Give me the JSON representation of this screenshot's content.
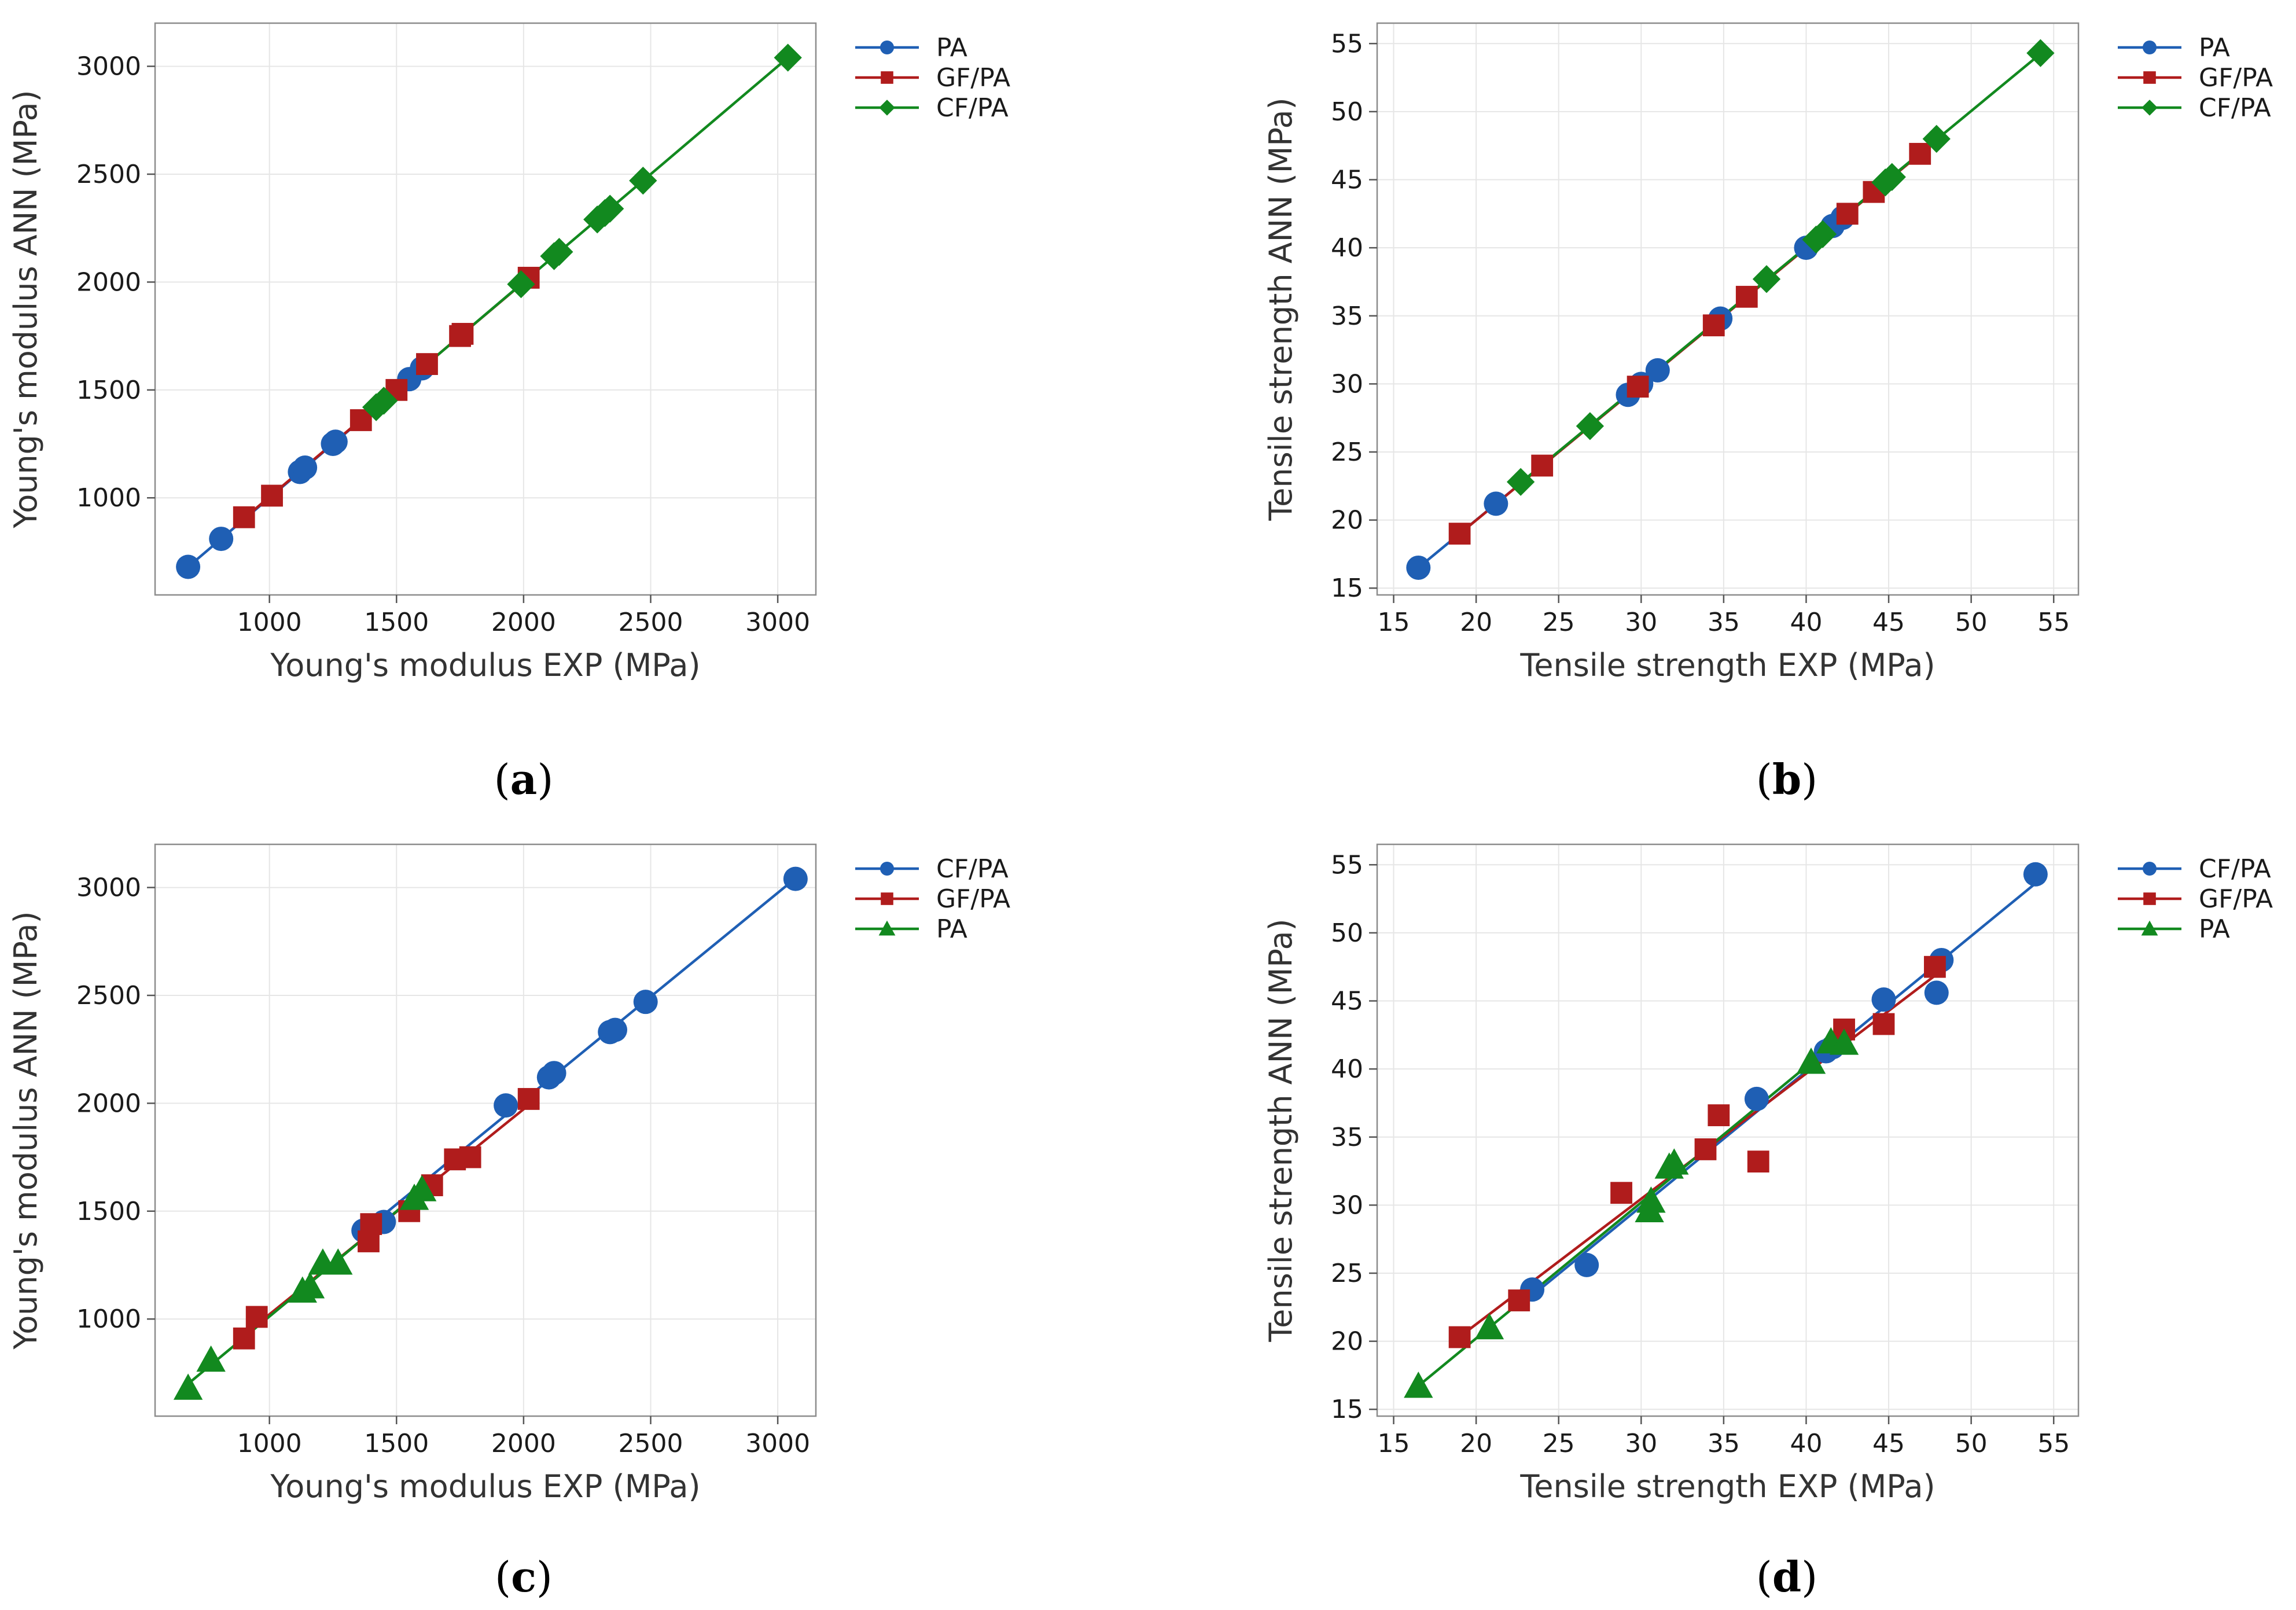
{
  "chart_data": [
    {
      "type": "scatter",
      "panel_label": "a",
      "xlabel": "Young's modulus EXP (MPa)",
      "ylabel": "Young's modulus ANN (MPa)",
      "xlim": [
        550,
        3150
      ],
      "ylim": [
        550,
        3200
      ],
      "xticks": [
        1000,
        1500,
        2000,
        2500,
        3000
      ],
      "yticks": [
        1000,
        1500,
        2000,
        2500,
        3000
      ],
      "legend_position": "outside-top-right",
      "series": [
        {
          "name": "PA",
          "color": "#1f5fb4",
          "marker": "circle",
          "x": [
            680,
            810,
            1120,
            1140,
            1250,
            1260,
            1550,
            1600
          ],
          "y": [
            680,
            810,
            1120,
            1140,
            1250,
            1260,
            1550,
            1600
          ]
        },
        {
          "name": "GF/PA",
          "color": "#b01c1c",
          "marker": "square",
          "x": [
            900,
            1010,
            1360,
            1500,
            1620,
            1750,
            1760,
            2020
          ],
          "y": [
            910,
            1010,
            1360,
            1500,
            1620,
            1750,
            1760,
            2020
          ]
        },
        {
          "name": "CF/PA",
          "color": "#12891f",
          "marker": "diamond",
          "x": [
            1420,
            1450,
            1990,
            2120,
            2140,
            2290,
            2320,
            2340,
            2470,
            3040
          ],
          "y": [
            1420,
            1450,
            1990,
            2120,
            2140,
            2290,
            2320,
            2340,
            2470,
            3040
          ]
        }
      ]
    },
    {
      "type": "scatter",
      "panel_label": "b",
      "xlabel": "Tensile strength EXP (MPa)",
      "ylabel": "Tensile strength ANN (MPa)",
      "xlim": [
        14,
        56.5
      ],
      "ylim": [
        14.5,
        56.5
      ],
      "xticks": [
        15,
        20,
        25,
        30,
        35,
        40,
        45,
        50,
        55
      ],
      "yticks": [
        15,
        20,
        25,
        30,
        35,
        40,
        45,
        50,
        55
      ],
      "legend_position": "outside-top-right",
      "series": [
        {
          "name": "PA",
          "color": "#1f5fb4",
          "marker": "circle",
          "x": [
            16.5,
            21.2,
            29.2,
            30.0,
            31.0,
            34.8,
            40.0,
            41.6,
            42.2
          ],
          "y": [
            16.5,
            21.2,
            29.2,
            30.0,
            31.0,
            34.8,
            40.0,
            41.6,
            42.2
          ]
        },
        {
          "name": "GF/PA",
          "color": "#b01c1c",
          "marker": "square",
          "x": [
            19.0,
            24.0,
            29.8,
            34.4,
            36.4,
            42.5,
            44.1,
            46.9
          ],
          "y": [
            19.0,
            24.0,
            29.8,
            34.3,
            36.4,
            42.5,
            44.1,
            46.9
          ]
        },
        {
          "name": "CF/PA",
          "color": "#12891f",
          "marker": "diamond",
          "x": [
            22.7,
            26.9,
            37.6,
            40.6,
            41.0,
            44.8,
            45.2,
            47.9,
            54.2
          ],
          "y": [
            22.8,
            26.9,
            37.7,
            40.6,
            41.0,
            44.8,
            45.2,
            48.0,
            54.3
          ]
        }
      ]
    },
    {
      "type": "scatter",
      "panel_label": "c",
      "xlabel": "Young's modulus EXP (MPa)",
      "ylabel": "Young's modulus ANN (MPa)",
      "xlim": [
        550,
        3150
      ],
      "ylim": [
        550,
        3200
      ],
      "xticks": [
        1000,
        1500,
        2000,
        2500,
        3000
      ],
      "yticks": [
        1000,
        1500,
        2000,
        2500,
        3000
      ],
      "legend_position": "outside-top-right",
      "series": [
        {
          "name": "CF/PA",
          "color": "#1f5fb4",
          "marker": "circle",
          "x": [
            1370,
            1450,
            1930,
            2100,
            2120,
            2340,
            2360,
            2480,
            3070
          ],
          "y": [
            1410,
            1450,
            1990,
            2120,
            2140,
            2330,
            2340,
            2470,
            3040
          ]
        },
        {
          "name": "GF/PA",
          "color": "#b01c1c",
          "marker": "square",
          "x": [
            900,
            950,
            1390,
            1400,
            1550,
            1640,
            1730,
            1790,
            2020
          ],
          "y": [
            910,
            1010,
            1360,
            1440,
            1500,
            1620,
            1740,
            1750,
            2020
          ]
        },
        {
          "name": "PA",
          "color": "#12891f",
          "marker": "triangle",
          "x": [
            680,
            770,
            1130,
            1160,
            1210,
            1270,
            1570,
            1600
          ],
          "y": [
            680,
            810,
            1130,
            1150,
            1260,
            1260,
            1560,
            1600
          ]
        }
      ]
    },
    {
      "type": "scatter",
      "panel_label": "d",
      "xlabel": "Tensile strength EXP (MPa)",
      "ylabel": "Tensile strength ANN (MPa)",
      "xlim": [
        14,
        56.5
      ],
      "ylim": [
        14.5,
        56.5
      ],
      "xticks": [
        15,
        20,
        25,
        30,
        35,
        40,
        45,
        50,
        55
      ],
      "yticks": [
        15,
        20,
        25,
        30,
        35,
        40,
        45,
        50,
        55
      ],
      "legend_position": "outside-top-right",
      "series": [
        {
          "name": "CF/PA",
          "color": "#1f5fb4",
          "marker": "circle",
          "x": [
            23.4,
            26.7,
            37.0,
            41.2,
            41.6,
            44.7,
            47.9,
            48.2,
            53.9
          ],
          "y": [
            23.8,
            25.6,
            37.8,
            41.3,
            41.6,
            45.1,
            45.6,
            48.0,
            54.3
          ]
        },
        {
          "name": "GF/PA",
          "color": "#b01c1c",
          "marker": "square",
          "x": [
            19.0,
            22.6,
            28.8,
            33.9,
            34.7,
            37.1,
            42.3,
            44.7,
            47.8
          ],
          "y": [
            20.3,
            23.0,
            30.9,
            34.1,
            36.6,
            33.2,
            42.9,
            43.3,
            47.5
          ]
        },
        {
          "name": "PA",
          "color": "#12891f",
          "marker": "triangle",
          "x": [
            16.5,
            20.8,
            30.5,
            30.6,
            31.7,
            32.0,
            40.3,
            41.5,
            42.3
          ],
          "y": [
            16.7,
            21.0,
            29.6,
            30.3,
            32.8,
            33.1,
            40.5,
            42.0,
            41.9
          ]
        }
      ]
    }
  ]
}
